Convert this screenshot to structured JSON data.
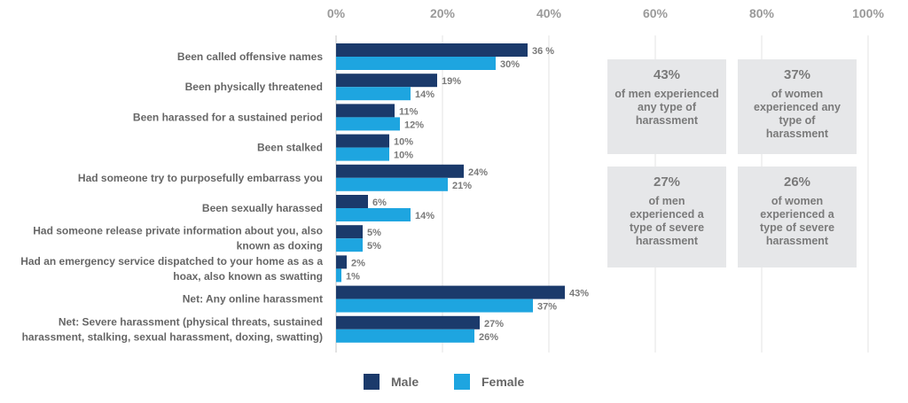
{
  "chart_data": {
    "type": "bar",
    "orientation": "horizontal",
    "categories": [
      [
        "Been called offensive names"
      ],
      [
        "Been physically threatened"
      ],
      [
        "Been harassed for a sustained period"
      ],
      [
        "Been stalked"
      ],
      [
        "Had someone try to purposefully embarrass you"
      ],
      [
        "Been sexually harassed"
      ],
      [
        "Had someone release private information about you, also",
        "known as doxing"
      ],
      [
        "Had an emergency service dispatched to your home as as a",
        "hoax, also known as swatting"
      ],
      [
        "Net: Any online harassment"
      ],
      [
        "Net: Severe harassment (physical threats, sustained",
        "harassment, stalking, sexual harassment, doxing, swatting)"
      ]
    ],
    "series": [
      {
        "name": "Male",
        "color": "#1b3a6b",
        "values": [
          36,
          19,
          11,
          10,
          24,
          6,
          5,
          2,
          43,
          27
        ],
        "labels": [
          "36 %",
          "19%",
          "11%",
          "10%",
          "24%",
          "6%",
          "5%",
          "2%",
          "43%",
          "27%"
        ]
      },
      {
        "name": "Female",
        "color": "#1ea5e0",
        "values": [
          30,
          14,
          12,
          10,
          21,
          14,
          5,
          1,
          37,
          26
        ],
        "labels": [
          "30%",
          "14%",
          "12%",
          "10%",
          "21%",
          "14%",
          "5%",
          "1%",
          "37%",
          "26%"
        ]
      }
    ],
    "xlim": [
      0,
      100
    ],
    "xticks": [
      0,
      20,
      40,
      60,
      80,
      100
    ],
    "xtick_labels": [
      "0%",
      "20%",
      "40%",
      "60%",
      "80%",
      "100%"
    ],
    "grid": true,
    "legend_position": "bottom"
  },
  "callouts": [
    {
      "pct": "43%",
      "lines": [
        "of men experienced",
        "any type of",
        "harassment"
      ]
    },
    {
      "pct": "37%",
      "lines": [
        "of women",
        "experienced any",
        "type of",
        "harassment"
      ]
    },
    {
      "pct": "27%",
      "lines": [
        "of men",
        "experienced a",
        "type of severe",
        "harassment"
      ]
    },
    {
      "pct": "26%",
      "lines": [
        "of women",
        "experienced a",
        "type of severe",
        "harassment"
      ]
    }
  ],
  "colors": {
    "grid": "#e3e3e3",
    "axis": "#cfcfcf",
    "callout_bg": "#e6e7e9"
  }
}
